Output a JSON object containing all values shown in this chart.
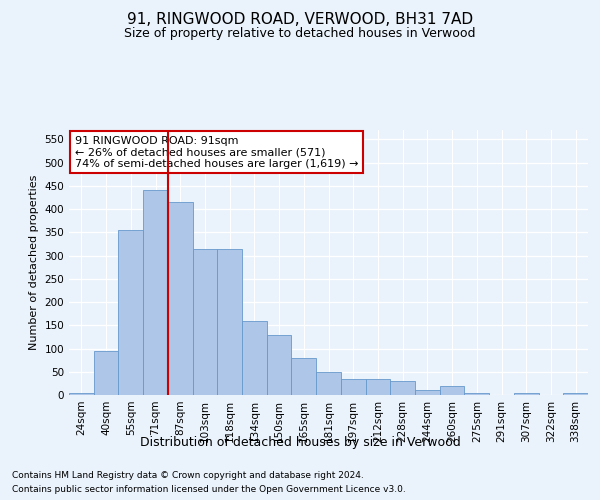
{
  "title_line1": "91, RINGWOOD ROAD, VERWOOD, BH31 7AD",
  "title_line2": "Size of property relative to detached houses in Verwood",
  "xlabel": "Distribution of detached houses by size in Verwood",
  "ylabel": "Number of detached properties",
  "footer_line1": "Contains HM Land Registry data © Crown copyright and database right 2024.",
  "footer_line2": "Contains public sector information licensed under the Open Government Licence v3.0.",
  "annotation_line1": "91 RINGWOOD ROAD: 91sqm",
  "annotation_line2": "← 26% of detached houses are smaller (571)",
  "annotation_line3": "74% of semi-detached houses are larger (1,619) →",
  "bar_labels": [
    "24sqm",
    "40sqm",
    "55sqm",
    "71sqm",
    "87sqm",
    "103sqm",
    "118sqm",
    "134sqm",
    "150sqm",
    "165sqm",
    "181sqm",
    "197sqm",
    "212sqm",
    "228sqm",
    "244sqm",
    "260sqm",
    "275sqm",
    "291sqm",
    "307sqm",
    "322sqm",
    "338sqm"
  ],
  "bar_values": [
    5,
    95,
    355,
    440,
    415,
    315,
    315,
    160,
    130,
    80,
    50,
    35,
    35,
    30,
    10,
    20,
    5,
    0,
    5,
    0,
    5
  ],
  "bar_color": "#AEC6E8",
  "bar_edge_color": "#6699CC",
  "redline_bin_index": 4,
  "ylim": [
    0,
    570
  ],
  "yticks": [
    0,
    50,
    100,
    150,
    200,
    250,
    300,
    350,
    400,
    450,
    500,
    550
  ],
  "background_color": "#EAF2FB",
  "plot_bg_color": "#EAF2FB",
  "grid_color": "#FFFFFF",
  "annotation_box_facecolor": "#FFFFFF",
  "annotation_box_edgecolor": "#CC0000",
  "redline_color": "#CC0000",
  "title1_fontsize": 11,
  "title2_fontsize": 9,
  "ylabel_fontsize": 8,
  "xlabel_fontsize": 9,
  "tick_fontsize": 7.5,
  "annotation_fontsize": 8,
  "footer_fontsize": 6.5
}
